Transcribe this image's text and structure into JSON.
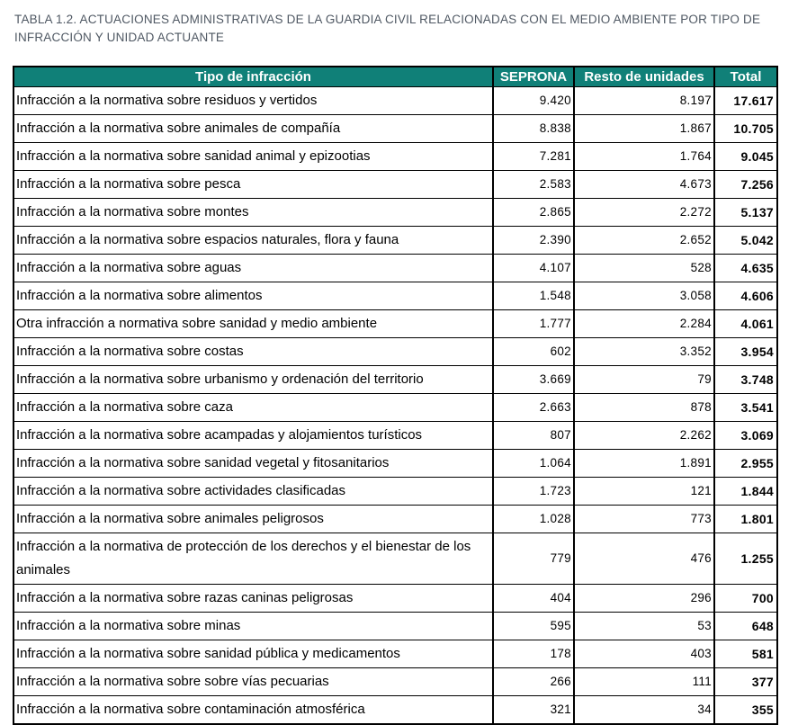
{
  "title": {
    "lines": [
      "TABLA 1.2. ACTUACIONES ADMINISTRATIVAS DE LA GUARDIA CIVIL RELACIONADAS CON EL MEDIO AMBIENTE POR TIPO DE",
      "INFRACCIÓN Y UNIDAD ACTUANTE"
    ]
  },
  "table": {
    "columns": [
      "Tipo de infracción",
      "SEPRONA",
      "Resto de unidades",
      "Total"
    ],
    "rows": [
      {
        "label": "Infracción a la normativa sobre residuos y vertidos",
        "seprona": "9.420",
        "resto": "8.197",
        "total": "17.617"
      },
      {
        "label": "Infracción a la normativa sobre animales de compañía",
        "seprona": "8.838",
        "resto": "1.867",
        "total": "10.705"
      },
      {
        "label": "Infracción  a la normativa sobre sanidad animal y epizootias",
        "seprona": "7.281",
        "resto": "1.764",
        "total": "9.045"
      },
      {
        "label": "Infracción a la normativa sobre pesca",
        "seprona": "2.583",
        "resto": "4.673",
        "total": "7.256"
      },
      {
        "label": "Infracción a la normativa sobre montes",
        "seprona": "2.865",
        "resto": "2.272",
        "total": "5.137"
      },
      {
        "label": "Infracción a la normativa sobre espacios naturales, flora y fauna",
        "seprona": "2.390",
        "resto": "2.652",
        "total": "5.042"
      },
      {
        "label": "Infracción a la normativa sobre aguas",
        "seprona": "4.107",
        "resto": "528",
        "total": "4.635"
      },
      {
        "label": "Infracción a la normativa sobre alimentos",
        "seprona": "1.548",
        "resto": "3.058",
        "total": "4.606"
      },
      {
        "label": "Otra infracción a normativa sobre sanidad y medio ambiente",
        "seprona": "1.777",
        "resto": "2.284",
        "total": "4.061"
      },
      {
        "label": "Infracción a la normativa sobre costas",
        "seprona": "602",
        "resto": "3.352",
        "total": "3.954"
      },
      {
        "label": "Infracción a la normativa sobre urbanismo y ordenación del territorio",
        "seprona": "3.669",
        "resto": "79",
        "total": "3.748"
      },
      {
        "label": "Infracción a la normativa sobre caza",
        "seprona": "2.663",
        "resto": "878",
        "total": "3.541"
      },
      {
        "label": "Infracción a la normativa sobre acampadas y alojamientos turísticos",
        "seprona": "807",
        "resto": "2.262",
        "total": "3.069"
      },
      {
        "label": "Infracción a la normativa sobre sanidad vegetal y fitosanitarios",
        "seprona": "1.064",
        "resto": "1.891",
        "total": "2.955"
      },
      {
        "label": "Infracción a la normativa sobre actividades clasificadas",
        "seprona": "1.723",
        "resto": "121",
        "total": "1.844"
      },
      {
        "label": "Infracción a la normativa sobre animales peligrosos",
        "seprona": "1.028",
        "resto": "773",
        "total": "1.801"
      },
      {
        "label": "Infracción a la normativa de protección de los derechos y el bienestar de los animales",
        "seprona": "779",
        "resto": "476",
        "total": "1.255"
      },
      {
        "label": "Infracción a la normativa sobre razas caninas  peligrosas",
        "seprona": "404",
        "resto": "296",
        "total": "700"
      },
      {
        "label": "Infracción a la normativa sobre minas",
        "seprona": "595",
        "resto": "53",
        "total": "648"
      },
      {
        "label": "Infracción a la normativa sobre sanidad pública y medicamentos",
        "seprona": "178",
        "resto": "403",
        "total": "581"
      },
      {
        "label": "Infracción a la normativa sobre sobre vías pecuarias",
        "seprona": "266",
        "resto": "111",
        "total": "377"
      },
      {
        "label": "Infracción a la normativa sobre contaminación atmosférica",
        "seprona": "321",
        "resto": "34",
        "total": "355"
      }
    ]
  },
  "colors": {
    "header_bg": "#108078",
    "header_text": "#ffffff",
    "title_color": "#4f5863",
    "border_color": "#000000",
    "body_text": "#000000",
    "page_bg": "#ffffff"
  }
}
